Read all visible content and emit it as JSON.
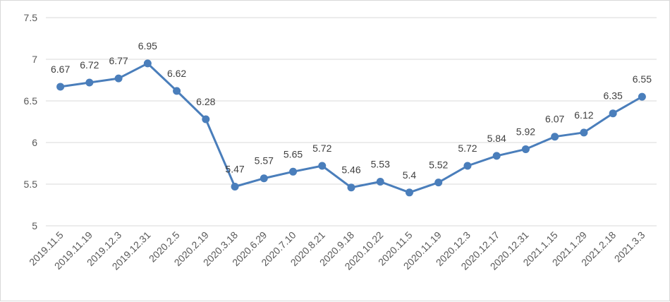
{
  "chart_data": {
    "type": "line",
    "title": "",
    "xlabel": "",
    "ylabel": "",
    "ylim": [
      5,
      7.5
    ],
    "yticks": [
      "5",
      "5.5",
      "6",
      "6.5",
      "7",
      "7.5"
    ],
    "ytick_values": [
      5,
      5.5,
      6,
      6.5,
      7,
      7.5
    ],
    "grid": true,
    "legend": "none",
    "color": "#4a7ebb",
    "categories": [
      "2019.11.5",
      "2019.11.19",
      "2019.12.3",
      "2019.12.31",
      "2020.2.5",
      "2020.2.19",
      "2020.3.18",
      "2020.6.29",
      "2020.7.10",
      "2020.8.21",
      "2020.9.18",
      "2020.10.22",
      "2020.11.5",
      "2020.11.19",
      "2020.12.3",
      "2020.12.17",
      "2020.12.31",
      "2021.1.15",
      "2021.1.29",
      "2021.2.18",
      "2021.3.3"
    ],
    "values": [
      6.67,
      6.72,
      6.77,
      6.95,
      6.62,
      6.28,
      5.47,
      5.57,
      5.65,
      5.72,
      5.46,
      5.53,
      5.4,
      5.52,
      5.72,
      5.84,
      5.92,
      6.07,
      6.12,
      6.35,
      6.55
    ],
    "value_labels": [
      "6.67",
      "6.72",
      "6.77",
      "6.95",
      "6.62",
      "6.28",
      "5.47",
      "5.57",
      "5.65",
      "5.72",
      "5.46",
      "5.53",
      "5.4",
      "5.52",
      "5.72",
      "5.84",
      "5.92",
      "6.07",
      "6.12",
      "6.35",
      "6.55"
    ]
  }
}
